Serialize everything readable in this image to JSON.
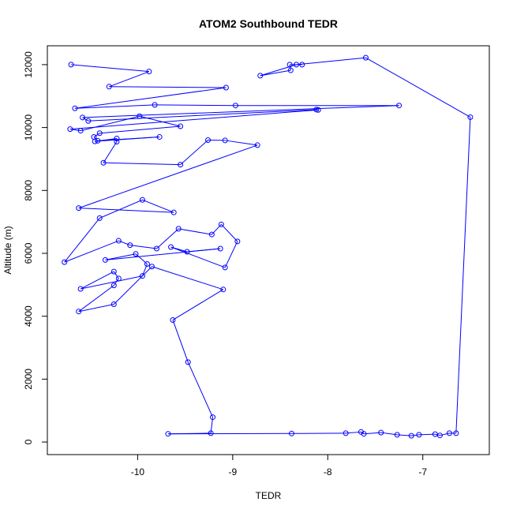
{
  "chart_data": {
    "type": "line",
    "title": "ATOM2 Southbound TEDR",
    "xlabel": "TEDR",
    "ylabel": "Altitude (m)",
    "xlim": [
      -10.95,
      -6.3
    ],
    "ylim": [
      -400,
      12600
    ],
    "x_ticks": [
      -10,
      -9,
      -8,
      -7
    ],
    "y_ticks": [
      0,
      2000,
      4000,
      6000,
      8000,
      10000,
      12000
    ],
    "grid": false,
    "legend": "none",
    "series_color": "#0000ff",
    "series": [
      {
        "markers": "open-circle",
        "points": [
          [
            -10.7,
            12000
          ],
          [
            -9.88,
            11780
          ],
          [
            -10.3,
            11300
          ],
          [
            -9.07,
            11270
          ],
          [
            -10.66,
            10610
          ],
          [
            -9.82,
            10720
          ],
          [
            -8.97,
            10700
          ],
          [
            -7.25,
            10700
          ],
          [
            -10.58,
            10320
          ],
          [
            -10.52,
            10210
          ],
          [
            -8.12,
            10570
          ],
          [
            -8.1,
            10560
          ],
          [
            -10.71,
            9950
          ],
          [
            -10.6,
            9900
          ],
          [
            -9.98,
            10360
          ],
          [
            -9.55,
            10040
          ],
          [
            -10.4,
            9820
          ],
          [
            -10.46,
            9700
          ],
          [
            -10.42,
            9580
          ],
          [
            -9.77,
            9700
          ],
          [
            -10.45,
            9560
          ],
          [
            -10.22,
            9650
          ],
          [
            -10.22,
            9550
          ],
          [
            -10.36,
            8880
          ],
          [
            -9.55,
            8820
          ],
          [
            -9.26,
            9600
          ],
          [
            -9.08,
            9590
          ],
          [
            -8.74,
            9440
          ],
          [
            -10.62,
            7440
          ],
          [
            -9.62,
            7300
          ],
          [
            -9.95,
            7700
          ],
          [
            -10.4,
            7120
          ],
          [
            -10.77,
            5720
          ],
          [
            -10.2,
            6400
          ],
          [
            -10.08,
            6260
          ],
          [
            -9.8,
            6150
          ],
          [
            -9.57,
            6780
          ],
          [
            -9.22,
            6600
          ],
          [
            -9.12,
            6920
          ],
          [
            -8.95,
            6380
          ],
          [
            -9.08,
            5550
          ],
          [
            -9.65,
            6200
          ],
          [
            -9.48,
            6050
          ],
          [
            -9.13,
            6150
          ],
          [
            -10.34,
            5790
          ],
          [
            -10.02,
            5980
          ],
          [
            -9.9,
            5660
          ],
          [
            -9.95,
            5280
          ],
          [
            -10.6,
            4870
          ],
          [
            -10.25,
            5420
          ],
          [
            -10.2,
            5200
          ],
          [
            -10.25,
            4980
          ],
          [
            -10.62,
            4150
          ],
          [
            -10.25,
            4380
          ],
          [
            -9.85,
            5580
          ],
          [
            -9.1,
            4850
          ],
          [
            -9.63,
            3880
          ],
          [
            -9.47,
            2540
          ],
          [
            -9.21,
            790
          ],
          [
            -9.23,
            280
          ],
          [
            -9.68,
            260
          ],
          [
            -8.38,
            270
          ],
          [
            -7.81,
            280
          ],
          [
            -7.65,
            320
          ],
          [
            -7.62,
            260
          ],
          [
            -7.44,
            300
          ],
          [
            -7.27,
            230
          ],
          [
            -7.12,
            200
          ],
          [
            -7.04,
            230
          ],
          [
            -6.87,
            250
          ],
          [
            -6.82,
            210
          ],
          [
            -6.72,
            280
          ],
          [
            -6.65,
            280
          ],
          [
            -6.5,
            10330
          ],
          [
            -7.6,
            12220
          ],
          [
            -8.33,
            12000
          ],
          [
            -8.71,
            11650
          ],
          [
            -8.39,
            11820
          ],
          [
            -8.4,
            12000
          ],
          [
            -8.27,
            12000
          ]
        ]
      }
    ]
  }
}
